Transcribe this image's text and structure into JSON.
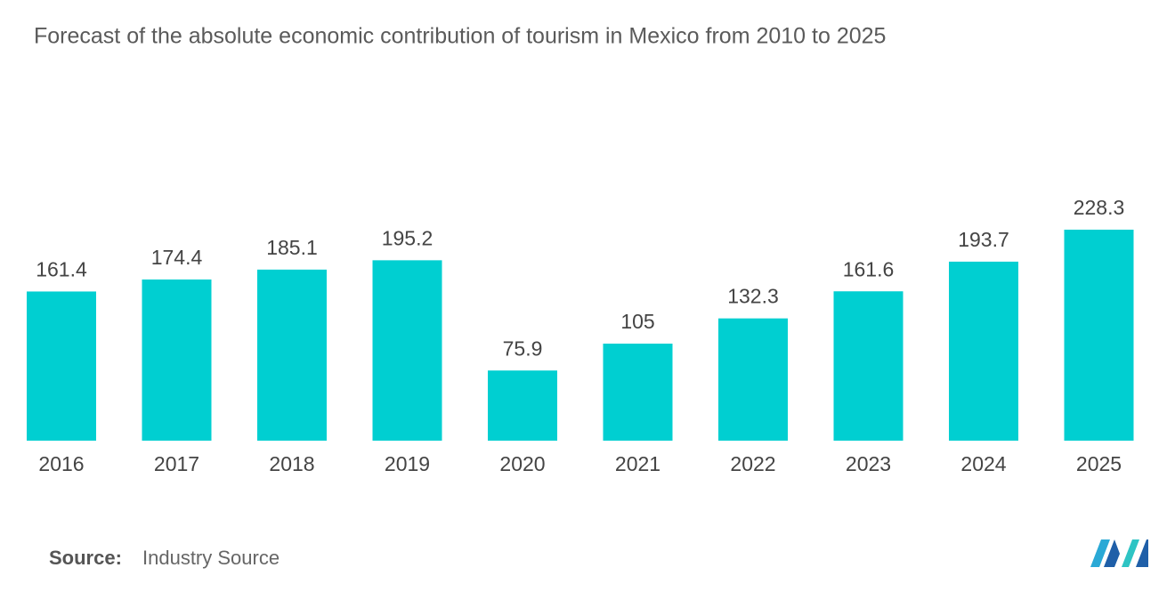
{
  "chart_data": {
    "type": "bar",
    "title": "Forecast of the absolute economic contribution of tourism in Mexico from 2010 to 2025",
    "categories": [
      "2016",
      "2017",
      "2018",
      "2019",
      "2020",
      "2021",
      "2022",
      "2023",
      "2024",
      "2025"
    ],
    "values": [
      161.4,
      174.4,
      185.1,
      195.2,
      75.9,
      105,
      132.3,
      161.6,
      193.7,
      228.3
    ],
    "color": "#00cfd1",
    "source_label": "Source:",
    "source": "Industry Source"
  }
}
